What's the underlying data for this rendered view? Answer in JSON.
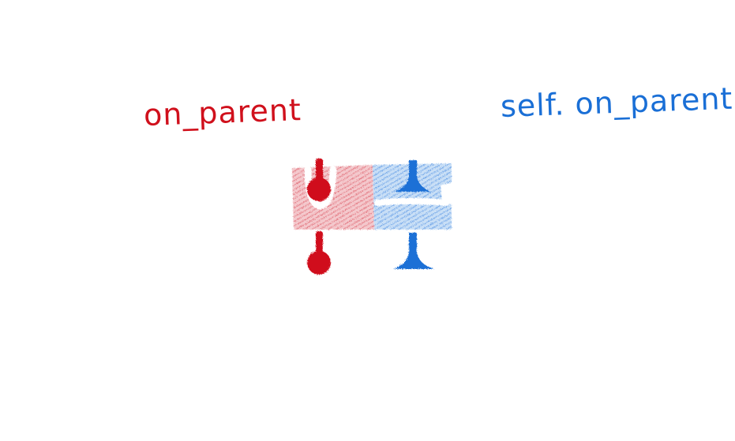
{
  "labels": {
    "left": "on_parent",
    "right": "self. on_parent"
  },
  "colors": {
    "red": "#d0101c",
    "blue": "#1a6fd6",
    "red_fill": "#e88f97",
    "blue_fill": "#7fb0ec"
  }
}
